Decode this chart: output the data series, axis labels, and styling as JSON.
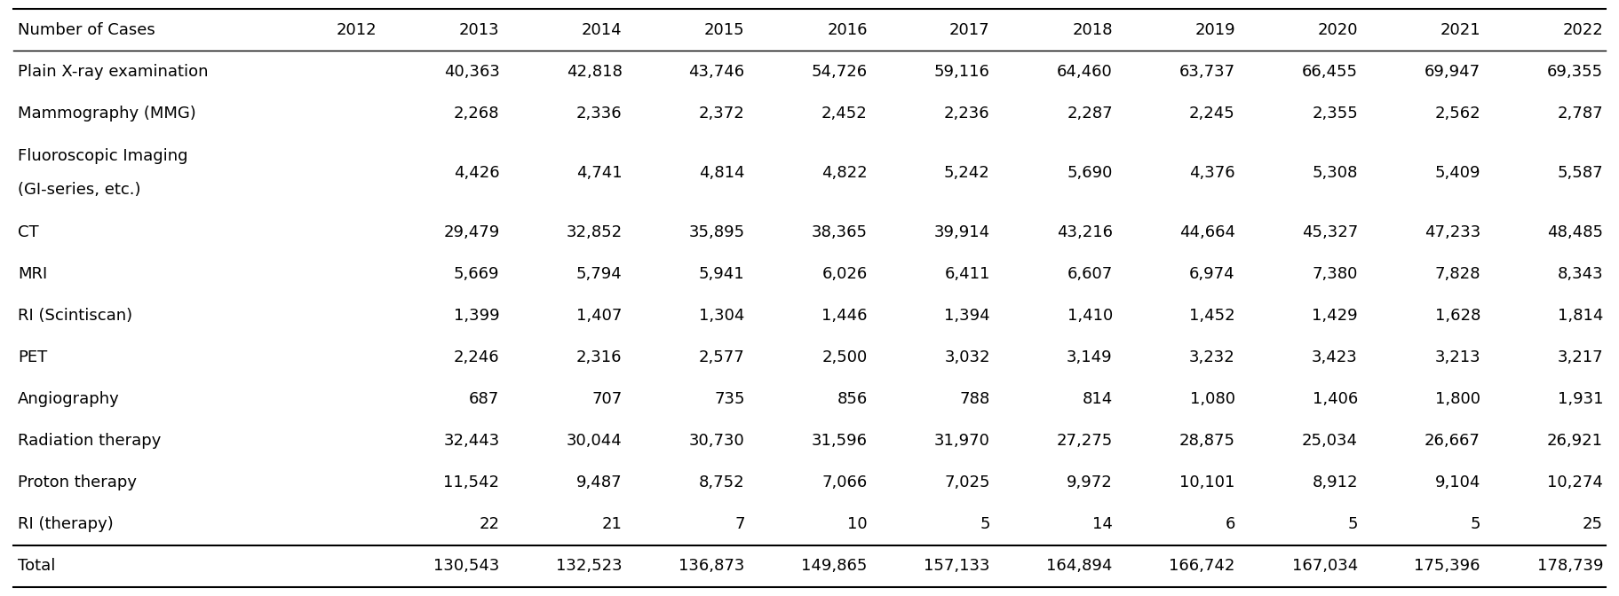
{
  "columns": [
    "Number of Cases",
    "2012",
    "2013",
    "2014",
    "2015",
    "2016",
    "2017",
    "2018",
    "2019",
    "2020",
    "2021",
    "2022"
  ],
  "rows": [
    [
      "Plain X-ray examination",
      "",
      "40,363",
      "42,818",
      "43,746",
      "54,726",
      "59,116",
      "64,460",
      "63,737",
      "66,455",
      "69,947",
      "69,355"
    ],
    [
      "Mammography (MMG)",
      "",
      "2,268",
      "2,336",
      "2,372",
      "2,452",
      "2,236",
      "2,287",
      "2,245",
      "2,355",
      "2,562",
      "2,787"
    ],
    [
      "Fluoroscopic Imaging\n(GI-series, etc.)",
      "",
      "4,426",
      "4,741",
      "4,814",
      "4,822",
      "5,242",
      "5,690",
      "4,376",
      "5,308",
      "5,409",
      "5,587"
    ],
    [
      "CT",
      "",
      "29,479",
      "32,852",
      "35,895",
      "38,365",
      "39,914",
      "43,216",
      "44,664",
      "45,327",
      "47,233",
      "48,485"
    ],
    [
      "MRI",
      "",
      "5,669",
      "5,794",
      "5,941",
      "6,026",
      "6,411",
      "6,607",
      "6,974",
      "7,380",
      "7,828",
      "8,343"
    ],
    [
      "RI (Scintiscan)",
      "",
      "1,399",
      "1,407",
      "1,304",
      "1,446",
      "1,394",
      "1,410",
      "1,452",
      "1,429",
      "1,628",
      "1,814"
    ],
    [
      "PET",
      "",
      "2,246",
      "2,316",
      "2,577",
      "2,500",
      "3,032",
      "3,149",
      "3,232",
      "3,423",
      "3,213",
      "3,217"
    ],
    [
      "Angiography",
      "",
      "687",
      "707",
      "735",
      "856",
      "788",
      "814",
      "1,080",
      "1,406",
      "1,800",
      "1,931"
    ],
    [
      "Radiation therapy",
      "",
      "32,443",
      "30,044",
      "30,730",
      "31,596",
      "31,970",
      "27,275",
      "28,875",
      "25,034",
      "26,667",
      "26,921"
    ],
    [
      "Proton therapy",
      "",
      "11,542",
      "9,487",
      "8,752",
      "7,066",
      "7,025",
      "9,972",
      "10,101",
      "8,912",
      "9,104",
      "10,274"
    ],
    [
      "RI (therapy)",
      "",
      "22",
      "21",
      "7",
      "10",
      "5",
      "14",
      "6",
      "5",
      "5",
      "25"
    ]
  ],
  "total_row": [
    "Total",
    "",
    "130,543",
    "132,523",
    "136,873",
    "149,865",
    "157,133",
    "164,894",
    "166,742",
    "167,034",
    "175,396",
    "178,739"
  ],
  "text_color": "#000000",
  "line_color": "#000000",
  "font_size": 13,
  "background_color": "#ffffff"
}
